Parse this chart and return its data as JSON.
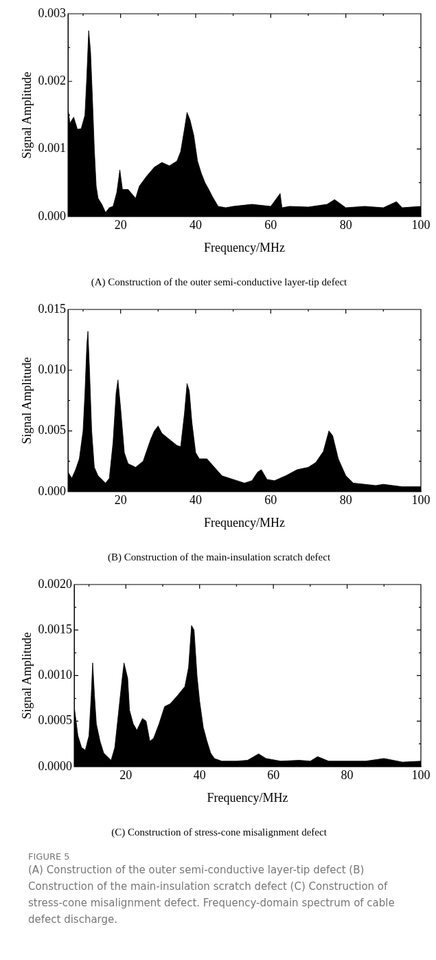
{
  "chart_data": [
    {
      "type": "area",
      "title": "(A) Construction of the outer semi-conductive layer-tip defect",
      "xlabel": "Frequency/MHz",
      "ylabel": "Signal Amplitude",
      "x": [
        6,
        6.5,
        7.5,
        8.5,
        9.5,
        10.5,
        11,
        11.5,
        12,
        12.5,
        13,
        13.5,
        14,
        15,
        16,
        17,
        18,
        19,
        19.8,
        20.5,
        22,
        24,
        25,
        27,
        29,
        31,
        33,
        35,
        36,
        37,
        37.7,
        38.5,
        39.5,
        40.5,
        41.5,
        42.5,
        43.5,
        44.5,
        46,
        48,
        50,
        55,
        60,
        62.5,
        63,
        65,
        70,
        75,
        77,
        80,
        85,
        90,
        93.5,
        95,
        100
      ],
      "series": [
        {
          "color": "#000000",
          "values": [
            0.0016,
            0.00138,
            0.00147,
            0.00129,
            0.0013,
            0.0015,
            0.00207,
            0.00275,
            0.00244,
            0.00175,
            0.001,
            0.00045,
            0.00027,
            0.00018,
            6e-05,
            0.00013,
            0.00015,
            0.00036,
            0.00069,
            0.0004,
            0.0004,
            0.00027,
            0.00045,
            0.0006,
            0.00073,
            0.0008,
            0.00075,
            0.00082,
            0.00096,
            0.00129,
            0.00154,
            0.00143,
            0.0012,
            0.00082,
            0.00064,
            0.0005,
            0.0004,
            0.00029,
            0.00015,
            0.00013,
            0.00015,
            0.00018,
            0.00015,
            0.00034,
            0.00013,
            0.00015,
            0.00014,
            0.00018,
            0.00025,
            0.00013,
            0.00015,
            0.00013,
            0.00022,
            0.00013,
            0.00015
          ]
        }
      ],
      "xlim": [
        6,
        100
      ],
      "xticks": [
        {
          "value": 10,
          "label": null
        },
        20,
        {
          "value": 30,
          "label": null
        },
        40,
        {
          "value": 50,
          "label": null
        },
        60,
        {
          "value": 70,
          "label": null
        },
        80,
        {
          "value": 90,
          "label": null
        },
        100
      ],
      "ylim": [
        0,
        0.003
      ],
      "yticks": [
        {
          "value": 0,
          "label": "0.000"
        },
        {
          "value": 0.0005,
          "label": null
        },
        {
          "value": 0.001,
          "label": "0.001"
        },
        {
          "value": 0.0015,
          "label": null
        },
        {
          "value": 0.002,
          "label": "0.002"
        },
        {
          "value": 0.0025,
          "label": null
        },
        {
          "value": 0.003,
          "label": "0.003"
        }
      ]
    },
    {
      "type": "area",
      "title": "(B) Construction of the main-insulation scratch defect",
      "xlabel": "Frequency/MHz",
      "ylabel": "Signal Amplitude",
      "x": [
        6,
        7,
        8,
        9,
        10,
        10.5,
        11,
        11.3,
        11.7,
        12.3,
        13,
        14,
        16,
        17,
        18,
        18.8,
        19.3,
        20,
        21,
        22,
        24,
        26,
        27,
        28,
        29,
        30,
        31,
        33,
        35,
        36,
        37,
        37.7,
        38.3,
        39,
        40,
        41,
        43,
        45,
        47,
        50,
        53,
        55,
        56.5,
        57.5,
        59,
        61,
        64,
        67,
        70,
        72,
        74,
        75.5,
        76.5,
        78,
        80,
        82,
        85,
        88,
        90,
        95,
        100
      ],
      "series": [
        {
          "color": "#000000",
          "values": [
            0.0016,
            0.0011,
            0.0018,
            0.0027,
            0.005,
            0.0081,
            0.0121,
            0.0132,
            0.0102,
            0.005,
            0.002,
            0.0013,
            0.0007,
            0.0011,
            0.0041,
            0.0081,
            0.0092,
            0.0069,
            0.0032,
            0.0023,
            0.002,
            0.0025,
            0.0034,
            0.0043,
            0.005,
            0.0054,
            0.0048,
            0.0043,
            0.0038,
            0.0037,
            0.0064,
            0.0089,
            0.0083,
            0.0057,
            0.0032,
            0.0027,
            0.0027,
            0.002,
            0.0013,
            0.001,
            0.0007,
            0.0009,
            0.0016,
            0.0018,
            0.001,
            0.0009,
            0.0013,
            0.0018,
            0.002,
            0.0024,
            0.0033,
            0.005,
            0.0046,
            0.0027,
            0.0013,
            0.0007,
            0.0006,
            0.0005,
            0.0006,
            0.0004,
            0.0004
          ]
        }
      ],
      "xlim": [
        6,
        100
      ],
      "xticks": [
        {
          "value": 10,
          "label": null
        },
        20,
        {
          "value": 30,
          "label": null
        },
        40,
        {
          "value": 50,
          "label": null
        },
        60,
        {
          "value": 70,
          "label": null
        },
        80,
        {
          "value": 90,
          "label": null
        },
        100
      ],
      "ylim": [
        0,
        0.015
      ],
      "yticks": [
        {
          "value": 0,
          "label": "0.000"
        },
        {
          "value": 0.0025,
          "label": null
        },
        {
          "value": 0.005,
          "label": "0.005"
        },
        {
          "value": 0.0075,
          "label": null
        },
        {
          "value": 0.01,
          "label": "0.010"
        },
        {
          "value": 0.0125,
          "label": null
        },
        {
          "value": 0.015,
          "label": "0.015"
        }
      ]
    },
    {
      "type": "area",
      "title": "(C) Construction of stress-cone misalignment defect",
      "xlabel": "Frequency/MHz",
      "ylabel": "Signal Amplitude",
      "x": [
        6,
        7,
        8,
        9,
        10,
        10.6,
        11,
        11.5,
        12,
        13,
        14,
        16,
        17,
        18,
        19,
        19.5,
        20.5,
        21,
        22,
        23,
        24.5,
        25.5,
        26.5,
        27.5,
        29,
        30.5,
        32,
        34,
        36,
        37,
        37.8,
        38.5,
        39.3,
        40,
        41,
        42,
        43,
        44,
        46,
        50,
        53,
        56,
        58,
        62,
        67,
        70,
        72,
        75,
        80,
        85,
        90,
        95,
        100
      ],
      "series": [
        {
          "color": "#000000",
          "values": [
            0.00066,
            0.00034,
            0.00021,
            0.00018,
            0.00034,
            0.00078,
            0.00114,
            0.00078,
            0.00047,
            0.00028,
            0.00015,
            7e-05,
            0.00021,
            0.00059,
            0.00097,
            0.00114,
            0.00097,
            0.00062,
            0.00047,
            0.0004,
            0.00053,
            0.0005,
            0.00028,
            0.00031,
            0.00047,
            0.00066,
            0.00069,
            0.00078,
            0.00088,
            0.00109,
            0.00155,
            0.0015,
            0.001,
            0.00072,
            0.00043,
            0.00028,
            0.00015,
            9e-05,
            6e-05,
            6e-05,
            7e-05,
            0.00014,
            9e-05,
            6e-05,
            7e-05,
            6e-05,
            0.00011,
            6e-05,
            6e-05,
            6e-05,
            9e-05,
            5e-05,
            6e-05
          ]
        }
      ],
      "xlim": [
        6,
        100
      ],
      "xticks": [
        {
          "value": 10,
          "label": null
        },
        20,
        {
          "value": 30,
          "label": null
        },
        40,
        {
          "value": 50,
          "label": null
        },
        60,
        {
          "value": 70,
          "label": null
        },
        80,
        {
          "value": 90,
          "label": null
        },
        100
      ],
      "ylim": [
        0,
        0.002
      ],
      "yticks": [
        {
          "value": 0,
          "label": "0.0000"
        },
        {
          "value": 0.00025,
          "label": null
        },
        {
          "value": 0.0005,
          "label": "0.0005"
        },
        {
          "value": 0.00075,
          "label": null
        },
        {
          "value": 0.001,
          "label": "0.0010"
        },
        {
          "value": 0.00125,
          "label": null
        },
        {
          "value": 0.0015,
          "label": "0.0015"
        },
        {
          "value": 0.00175,
          "label": null
        },
        {
          "value": 0.002,
          "label": "0.0020"
        }
      ],
      "annotations": [
        "FIGURE 5",
        "(A) Construction of the outer semi-conductive layer-tip defect (B) Construction of the main-insulation scratch defect (C) Construction of stress-cone misalignment defect. Frequency-domain spectrum of cable defect discharge."
      ]
    }
  ]
}
